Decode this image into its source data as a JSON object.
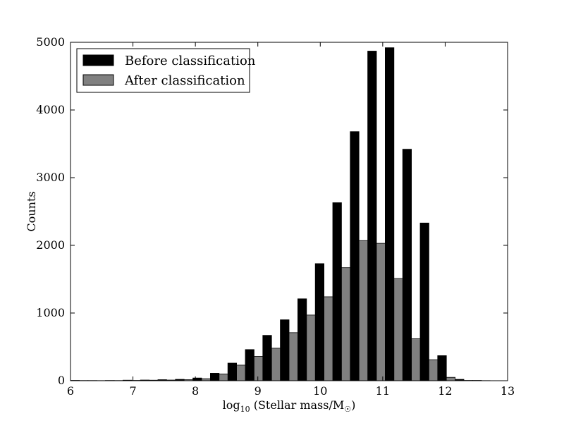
{
  "chart_data": {
    "type": "bar",
    "xlabel": {
      "prefix": "log",
      "sub1": "10",
      "middle": " (Stellar mass/M",
      "sub2": "☉",
      "suffix": ")"
    },
    "ylabel": "Counts",
    "xlim": [
      6,
      13
    ],
    "ylim": [
      0,
      5000
    ],
    "xticks": [
      6,
      7,
      8,
      9,
      10,
      11,
      12,
      13
    ],
    "yticks": [
      0,
      1000,
      2000,
      3000,
      4000,
      5000
    ],
    "bin_width": 0.28,
    "legend_position": "top-left",
    "bin_starts": [
      6.0,
      6.28,
      6.56,
      6.84,
      7.12,
      7.4,
      7.68,
      7.96,
      8.24,
      8.52,
      8.8,
      9.08,
      9.36,
      9.64,
      9.92,
      10.2,
      10.48,
      10.76,
      11.04,
      11.32,
      11.6,
      11.88,
      12.16,
      12.44
    ],
    "series": [
      {
        "name": "Before classification",
        "color": "#000000",
        "values": [
          5,
          3,
          4,
          8,
          10,
          15,
          20,
          40,
          110,
          260,
          460,
          670,
          900,
          1210,
          1730,
          2630,
          3680,
          4870,
          4920,
          3420,
          2330,
          370,
          20,
          5
        ]
      },
      {
        "name": "After classification",
        "color": "#808080",
        "values": [
          3,
          2,
          3,
          5,
          8,
          10,
          15,
          30,
          100,
          230,
          360,
          480,
          710,
          970,
          1240,
          1670,
          2070,
          2030,
          1510,
          620,
          310,
          50,
          5,
          2
        ]
      }
    ]
  }
}
